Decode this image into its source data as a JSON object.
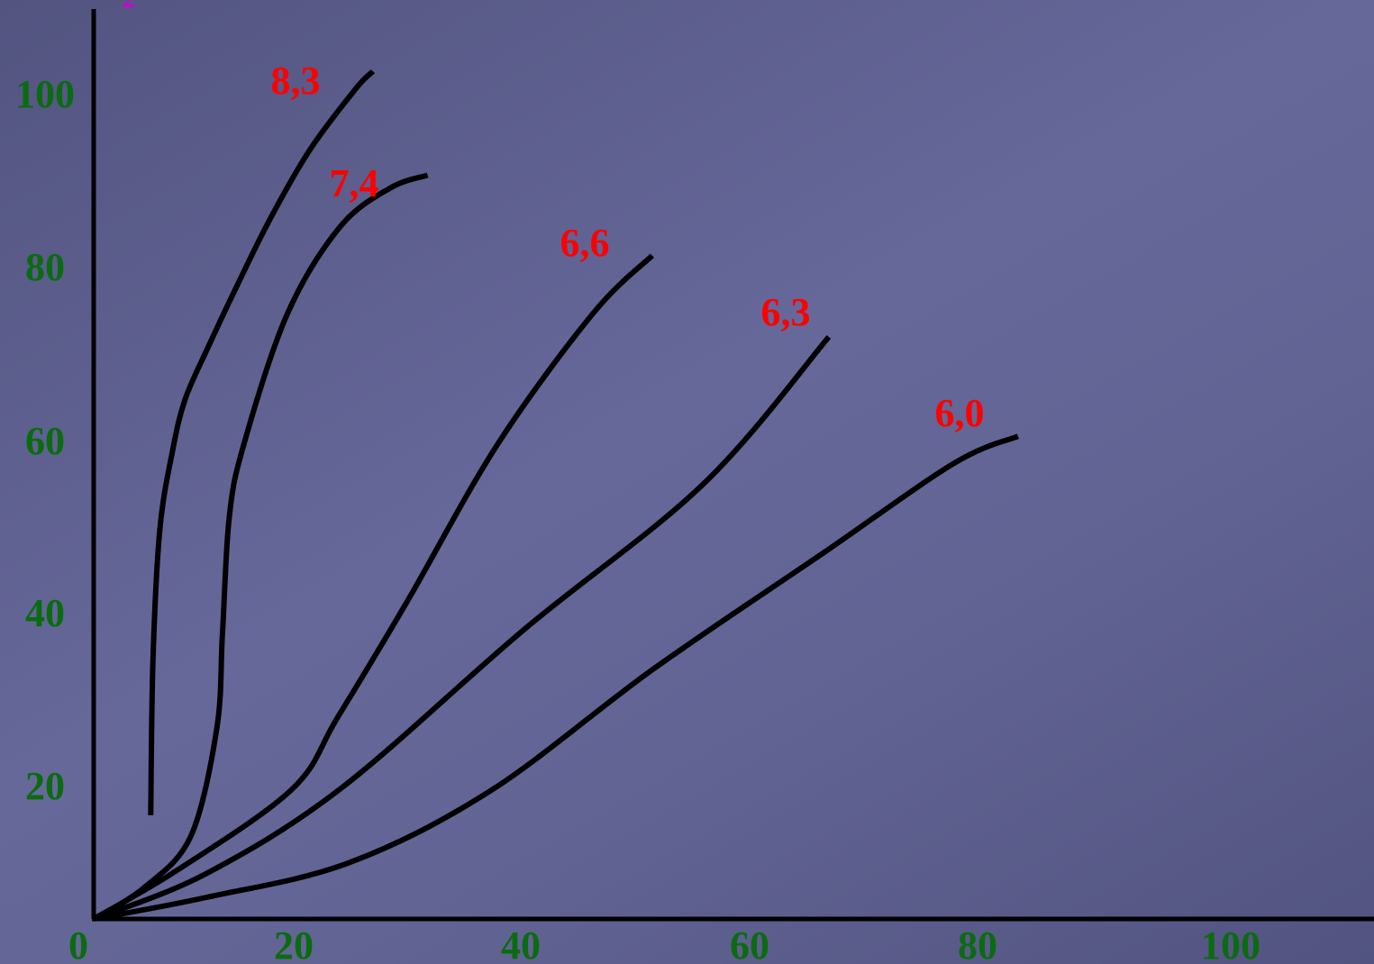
{
  "chart_data": {
    "type": "line",
    "title": "",
    "xlabel": "",
    "ylabel": "",
    "xlim": [
      0,
      110
    ],
    "ylim": [
      0,
      110
    ],
    "grid": false,
    "x_ticks": [
      "0",
      "20",
      "40",
      "60",
      "80",
      "100"
    ],
    "y_ticks": [
      "20",
      "40",
      "60",
      "80",
      "100"
    ],
    "tick_color": "#0b6b10",
    "label_color": "#ff0000",
    "line_color": "#000000",
    "series": [
      {
        "name": "8,3",
        "x": [
          5,
          5.2,
          5.8,
          6.9,
          8.0,
          10.0,
          12.5,
          15.5,
          19.0,
          23.0,
          24.5
        ],
        "y": [
          12,
          30,
          45,
          54,
          60,
          66,
          73,
          81,
          89,
          96,
          98
        ]
      },
      {
        "name": "7,4",
        "x": [
          0,
          4.4,
          8.5,
          10.8,
          11.3,
          11.9,
          13.2,
          17.0,
          21.6,
          26.0,
          29.3
        ],
        "y": [
          0,
          3.6,
          9.5,
          22.0,
          33.0,
          46.5,
          55.0,
          70.0,
          80.0,
          84.5,
          86.0
        ]
      },
      {
        "name": "6,6",
        "x": [
          0,
          7.4,
          17.4,
          21.4,
          27.5,
          35.4,
          43.8,
          49.0
        ],
        "y": [
          0,
          5.7,
          15.0,
          23.3,
          36.7,
          54.8,
          70.0,
          76.7
        ]
      },
      {
        "name": "6,3",
        "x": [
          0,
          9.8,
          21.7,
          37.7,
          53.5,
          64.5
        ],
        "y": [
          0,
          5.2,
          15.1,
          33.4,
          50.3,
          67.3
        ]
      },
      {
        "name": "6,0",
        "x": [
          0,
          9.9,
          22.4,
          34.9,
          49.1,
          64.0,
          75.5,
          81.1
        ],
        "y": [
          0,
          2.5,
          6.5,
          14.9,
          28.9,
          42.3,
          52.7,
          55.8
        ]
      }
    ]
  }
}
